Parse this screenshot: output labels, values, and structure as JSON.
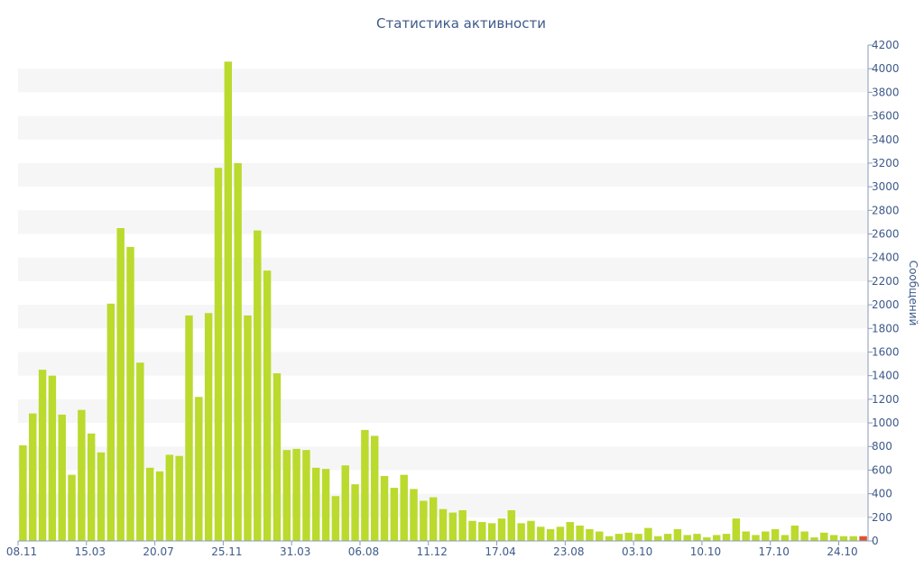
{
  "chart_data": {
    "type": "bar",
    "title": "Статистика активности",
    "xlabel": "",
    "ylabel": "Сообщений",
    "y_axis_side": "right",
    "ylim": [
      0,
      4200
    ],
    "y_ticks": [
      0,
      200,
      400,
      600,
      800,
      1000,
      1200,
      1400,
      1600,
      1800,
      2000,
      2200,
      2400,
      2600,
      2800,
      3000,
      3200,
      3400,
      3600,
      3800,
      4000,
      4200
    ],
    "x_tick_labels": [
      {
        "index": 0,
        "label": "08.11"
      },
      {
        "index": 7,
        "label": "15.03"
      },
      {
        "index": 14,
        "label": "20.07"
      },
      {
        "index": 21,
        "label": "25.11"
      },
      {
        "index": 28,
        "label": "31.03"
      },
      {
        "index": 35,
        "label": "06.08"
      },
      {
        "index": 42,
        "label": "11.12"
      },
      {
        "index": 49,
        "label": "17.04"
      },
      {
        "index": 56,
        "label": "23.08"
      },
      {
        "index": 63,
        "label": "03.10"
      },
      {
        "index": 70,
        "label": "10.10"
      },
      {
        "index": 77,
        "label": "17.10"
      },
      {
        "index": 84,
        "label": "24.10"
      }
    ],
    "grid": "horizontal bands",
    "bar_color": "#bada2e",
    "highlight_color": "#e0522d",
    "highlight_index": 86,
    "values": [
      810,
      1080,
      1450,
      1400,
      1070,
      560,
      1110,
      910,
      750,
      2010,
      2650,
      2490,
      1510,
      620,
      590,
      730,
      720,
      1910,
      1220,
      1930,
      3160,
      4060,
      3200,
      1910,
      2630,
      2290,
      1420,
      770,
      780,
      770,
      620,
      610,
      380,
      640,
      480,
      940,
      890,
      550,
      450,
      560,
      440,
      340,
      370,
      270,
      240,
      260,
      170,
      160,
      150,
      190,
      260,
      150,
      170,
      120,
      100,
      120,
      160,
      130,
      100,
      80,
      40,
      60,
      70,
      60,
      110,
      40,
      60,
      100,
      50,
      60,
      30,
      50,
      60,
      190,
      80,
      50,
      80,
      100,
      50,
      130,
      80,
      30,
      70,
      50,
      40,
      40,
      40
    ]
  }
}
